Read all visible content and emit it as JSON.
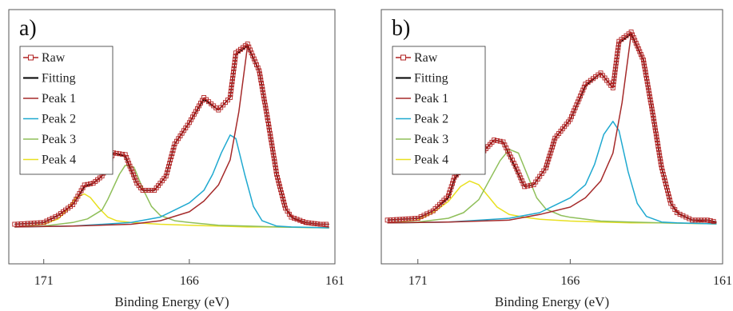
{
  "chart_data": [
    {
      "type": "line",
      "panel_label": "a)",
      "xlabel": "Binding Energy (eV)",
      "ylabel": "",
      "x_axis_reversed": true,
      "xlim": [
        172.2,
        161
      ],
      "ylim": [
        0,
        1.1
      ],
      "x_ticks": [
        171,
        166,
        161
      ],
      "grid": false,
      "legend_position": "top-left",
      "series": [
        {
          "name": "Raw",
          "color": "#b22222",
          "marker": "square-open",
          "x": [
            172,
            171,
            170.5,
            170,
            169.6,
            169.3,
            169.0,
            168.6,
            168.2,
            167.8,
            167.6,
            167.2,
            166.8,
            166.5,
            166.0,
            165.5,
            165.0,
            164.6,
            164.4,
            164.0,
            163.6,
            163.3,
            163.0,
            162.7,
            162.5,
            162.0,
            161.5,
            161.2
          ],
          "y": [
            0.02,
            0.03,
            0.07,
            0.13,
            0.24,
            0.25,
            0.29,
            0.42,
            0.41,
            0.25,
            0.21,
            0.21,
            0.29,
            0.47,
            0.59,
            0.73,
            0.66,
            0.73,
            0.98,
            1.03,
            0.88,
            0.6,
            0.3,
            0.11,
            0.06,
            0.03,
            0.02,
            0.02
          ]
        },
        {
          "name": "Fitting",
          "color": "#000000",
          "x": [
            172,
            171,
            170.5,
            170,
            169.6,
            169.3,
            169.0,
            168.6,
            168.2,
            167.8,
            167.6,
            167.2,
            166.8,
            166.5,
            166.0,
            165.5,
            165.0,
            164.6,
            164.4,
            164.0,
            163.6,
            163.3,
            163.0,
            162.7,
            162.5,
            162.0,
            161.5,
            161.2
          ],
          "y": [
            0.02,
            0.03,
            0.07,
            0.13,
            0.23,
            0.25,
            0.29,
            0.42,
            0.4,
            0.25,
            0.21,
            0.21,
            0.29,
            0.47,
            0.59,
            0.72,
            0.66,
            0.73,
            0.97,
            1.02,
            0.88,
            0.6,
            0.3,
            0.11,
            0.06,
            0.03,
            0.02,
            0.02
          ]
        },
        {
          "name": "Peak 1",
          "color": "#a52a2a",
          "x": [
            172,
            170,
            168,
            167,
            166,
            165.5,
            165,
            164.6,
            164.3,
            164.0,
            163.6,
            163.3,
            163.0,
            162.7,
            162.4,
            162.0,
            161.5,
            161.2
          ],
          "y": [
            0.005,
            0.01,
            0.02,
            0.04,
            0.09,
            0.15,
            0.24,
            0.38,
            0.65,
            1.02,
            0.88,
            0.6,
            0.3,
            0.11,
            0.05,
            0.02,
            0.01,
            0.005
          ]
        },
        {
          "name": "Peak 2",
          "color": "#1fa9d0",
          "x": [
            172,
            170,
            168,
            167,
            166.5,
            166,
            165.5,
            165.2,
            164.9,
            164.6,
            164.4,
            164.1,
            163.8,
            163.5,
            163.0,
            162.5,
            161.2
          ],
          "y": [
            0.005,
            0.01,
            0.03,
            0.06,
            0.1,
            0.14,
            0.21,
            0.3,
            0.42,
            0.52,
            0.5,
            0.3,
            0.12,
            0.04,
            0.01,
            0.005,
            0.0
          ]
        },
        {
          "name": "Peak 3",
          "color": "#8fbf5a",
          "x": [
            172,
            171,
            170,
            169.5,
            169,
            168.8,
            168.4,
            168.2,
            167.9,
            167.6,
            167.3,
            167.0,
            166.5,
            166.0,
            165.0,
            164.0,
            163.0,
            161.2
          ],
          "y": [
            0.005,
            0.01,
            0.03,
            0.05,
            0.1,
            0.16,
            0.3,
            0.35,
            0.34,
            0.22,
            0.12,
            0.07,
            0.04,
            0.03,
            0.015,
            0.01,
            0.005,
            0.0
          ]
        },
        {
          "name": "Peak 4",
          "color": "#e8e020",
          "x": [
            172,
            171,
            170.5,
            170.2,
            169.9,
            169.6,
            169.4,
            169.1,
            168.8,
            168.5,
            168.0,
            167.0,
            166.0,
            165.0,
            164.0,
            163.0,
            161.2
          ],
          "y": [
            0.005,
            0.02,
            0.05,
            0.1,
            0.17,
            0.19,
            0.17,
            0.11,
            0.06,
            0.04,
            0.03,
            0.02,
            0.015,
            0.01,
            0.005,
            0.005,
            0.0
          ]
        }
      ]
    },
    {
      "type": "line",
      "panel_label": "b)",
      "xlabel": "Binding Energy (eV)",
      "ylabel": "",
      "x_axis_reversed": true,
      "xlim": [
        172.2,
        161
      ],
      "ylim": [
        0,
        1.1
      ],
      "x_ticks": [
        171,
        166,
        161
      ],
      "grid": false,
      "legend_position": "top-left",
      "series": [
        {
          "name": "Raw",
          "color": "#b22222",
          "marker": "square-open",
          "x": [
            172,
            171,
            170.5,
            170,
            169.8,
            169.5,
            169.2,
            168.9,
            168.5,
            168.2,
            167.8,
            167.5,
            167.2,
            166.8,
            166.5,
            166.0,
            165.5,
            165.0,
            164.6,
            164.4,
            164.0,
            163.6,
            163.3,
            163.0,
            162.7,
            162.5,
            162.0,
            161.5,
            161.2
          ],
          "y": [
            0.02,
            0.03,
            0.07,
            0.15,
            0.25,
            0.31,
            0.33,
            0.38,
            0.45,
            0.44,
            0.31,
            0.2,
            0.21,
            0.3,
            0.46,
            0.56,
            0.75,
            0.81,
            0.73,
            0.98,
            1.03,
            0.88,
            0.6,
            0.3,
            0.11,
            0.06,
            0.02,
            0.02,
            0.01
          ]
        },
        {
          "name": "Fitting",
          "color": "#000000",
          "x": [
            172,
            171,
            170.5,
            170,
            169.8,
            169.5,
            169.2,
            168.9,
            168.5,
            168.2,
            167.8,
            167.5,
            167.2,
            166.8,
            166.5,
            166.0,
            165.5,
            165.0,
            164.6,
            164.4,
            164.0,
            163.6,
            163.3,
            163.0,
            162.7,
            162.5,
            162.0,
            161.5,
            161.2
          ],
          "y": [
            0.02,
            0.03,
            0.07,
            0.14,
            0.24,
            0.3,
            0.33,
            0.38,
            0.45,
            0.44,
            0.3,
            0.2,
            0.21,
            0.3,
            0.46,
            0.56,
            0.74,
            0.81,
            0.73,
            0.97,
            1.02,
            0.88,
            0.6,
            0.3,
            0.11,
            0.06,
            0.02,
            0.02,
            0.01
          ]
        },
        {
          "name": "Peak 1",
          "color": "#a52a2a",
          "x": [
            172,
            170,
            168,
            167,
            166,
            165.5,
            165,
            164.6,
            164.3,
            164.0,
            163.6,
            163.3,
            163.0,
            162.7,
            162.4,
            162.0,
            161.5,
            161.2
          ],
          "y": [
            0.005,
            0.01,
            0.02,
            0.05,
            0.09,
            0.14,
            0.23,
            0.38,
            0.65,
            1.02,
            0.88,
            0.6,
            0.3,
            0.11,
            0.05,
            0.02,
            0.01,
            0.005
          ]
        },
        {
          "name": "Peak 2",
          "color": "#1fa9d0",
          "x": [
            172,
            170,
            168,
            167,
            166.5,
            166,
            165.5,
            165.2,
            164.9,
            164.6,
            164.4,
            164.1,
            163.8,
            163.5,
            163.0,
            162.5,
            161.2
          ],
          "y": [
            0.005,
            0.01,
            0.03,
            0.06,
            0.1,
            0.14,
            0.21,
            0.32,
            0.48,
            0.55,
            0.5,
            0.28,
            0.11,
            0.04,
            0.01,
            0.005,
            0.0
          ]
        },
        {
          "name": "Peak 3",
          "color": "#8fbf5a",
          "x": [
            172,
            171,
            170,
            169.5,
            169,
            168.7,
            168.3,
            168.0,
            167.7,
            167.4,
            167.1,
            166.8,
            166.3,
            166.0,
            165.0,
            164.0,
            163.0,
            161.2
          ],
          "y": [
            0.005,
            0.01,
            0.03,
            0.06,
            0.13,
            0.22,
            0.34,
            0.4,
            0.38,
            0.26,
            0.14,
            0.08,
            0.045,
            0.035,
            0.015,
            0.01,
            0.005,
            0.0
          ]
        },
        {
          "name": "Peak 4",
          "color": "#e8e020",
          "x": [
            172,
            171,
            170.5,
            170.0,
            169.6,
            169.3,
            169.0,
            168.7,
            168.4,
            168.0,
            167.5,
            167.0,
            166.0,
            165.0,
            164.0,
            163.0,
            161.2
          ],
          "y": [
            0.005,
            0.02,
            0.06,
            0.12,
            0.2,
            0.23,
            0.21,
            0.15,
            0.09,
            0.05,
            0.035,
            0.025,
            0.015,
            0.01,
            0.005,
            0.005,
            0.0
          ]
        }
      ]
    }
  ]
}
